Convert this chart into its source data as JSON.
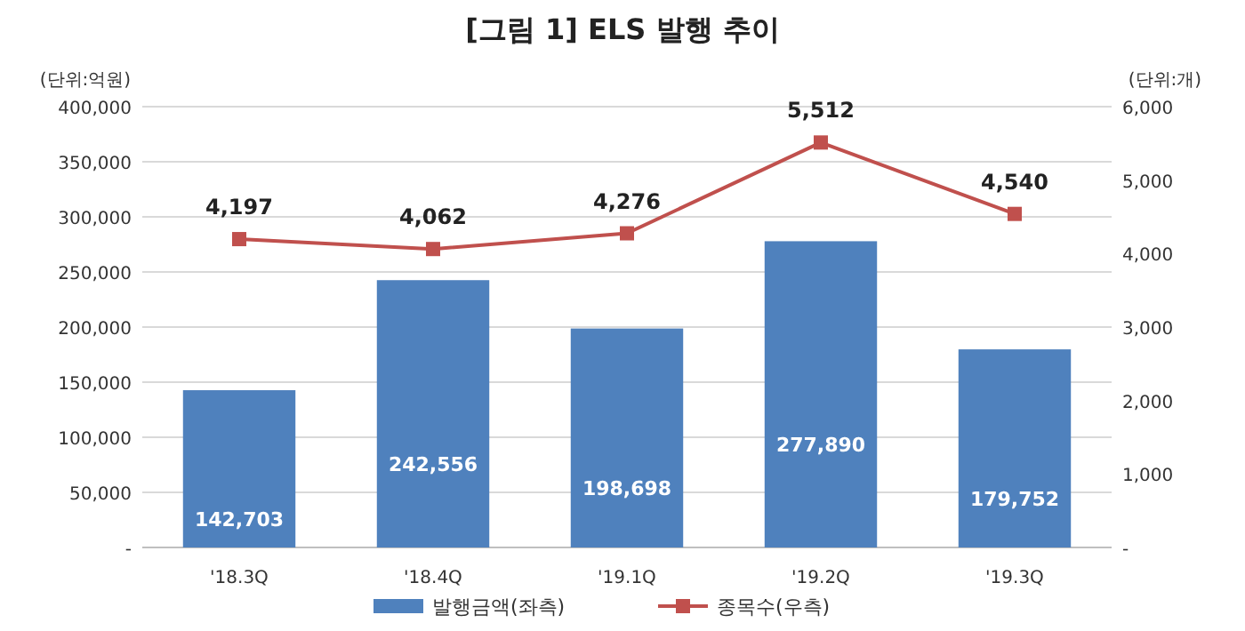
{
  "chart_data": {
    "type": "bar",
    "title": "[그림 1] ELS 발행 추이",
    "ylabel": "(단위:억원)",
    "y2label": "(단위:개)",
    "categories": [
      "'18.3Q",
      "'18.4Q",
      "'19.1Q",
      "'19.2Q",
      "'19.3Q"
    ],
    "series": [
      {
        "name": "발행금액(좌측)",
        "color": "#4f81bd",
        "values": [
          142703,
          242556,
          198698,
          277890,
          179752
        ],
        "value_labels": [
          "142,703",
          "242,556",
          "198,698",
          "277,890",
          "179,752"
        ]
      },
      {
        "name": "종목수(우측)",
        "type": "line",
        "axis": "y2",
        "color": "#c0504d",
        "marker": "square",
        "values": [
          4197,
          4062,
          4276,
          5512,
          4540
        ],
        "value_labels": [
          "4,197",
          "4,062",
          "4,276",
          "5,512",
          "4,540"
        ]
      }
    ],
    "ylim": [
      0,
      400000
    ],
    "yticks": [
      {
        "value": 0,
        "label": "-"
      },
      {
        "value": 50000,
        "label": "50,000"
      },
      {
        "value": 100000,
        "label": "100,000"
      },
      {
        "value": 150000,
        "label": "150,000"
      },
      {
        "value": 200000,
        "label": "200,000"
      },
      {
        "value": 250000,
        "label": "250,000"
      },
      {
        "value": 300000,
        "label": "300,000"
      },
      {
        "value": 350000,
        "label": "350,000"
      },
      {
        "value": 400000,
        "label": "400,000"
      }
    ],
    "y2lim": [
      0,
      6000
    ],
    "y2ticks": [
      {
        "value": 0,
        "label": "-"
      },
      {
        "value": 1000,
        "label": "1,000"
      },
      {
        "value": 2000,
        "label": "2,000"
      },
      {
        "value": 3000,
        "label": "3,000"
      },
      {
        "value": 4000,
        "label": "4,000"
      },
      {
        "value": 5000,
        "label": "5,000"
      },
      {
        "value": 6000,
        "label": "6,000"
      }
    ],
    "grid": "y",
    "legend": "bottom"
  }
}
